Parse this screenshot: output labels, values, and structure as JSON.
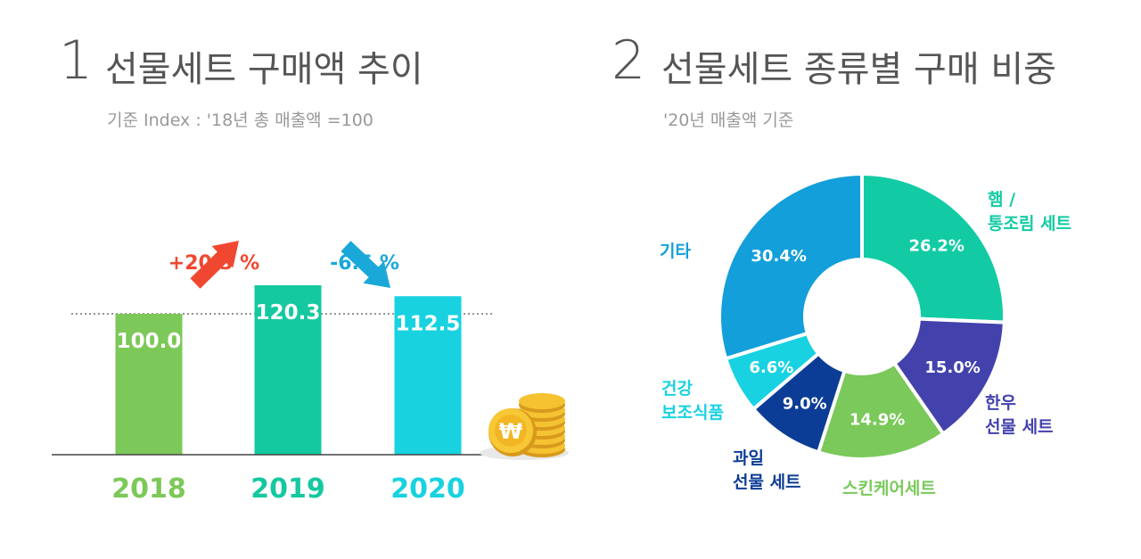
{
  "panel1": {
    "number": "1",
    "title": "선물세트 구매액 추이",
    "subtitle": "기준 Index : '18년 총 매출액 =100",
    "icon": "coins-icon"
  },
  "panel2": {
    "number": "2",
    "title": "선물세트 종류별 구매 비중",
    "subtitle": "'20년 매출액 기준"
  },
  "chart_data": [
    {
      "type": "bar",
      "categories": [
        "2018",
        "2019",
        "2020"
      ],
      "values": [
        100.0,
        120.3,
        112.5
      ],
      "value_labels": [
        "100.0",
        "120.3",
        "112.5"
      ],
      "colors": [
        "#7cc858",
        "#14c8a0",
        "#18d2e0"
      ],
      "baseline_reference": 100,
      "changes": [
        {
          "label": "+20.3 %",
          "color": "#f04830",
          "direction": "up"
        },
        {
          "label": "-6.5 %",
          "color": "#1aa8d8",
          "direction": "down"
        }
      ]
    },
    {
      "type": "pie",
      "slices": [
        {
          "label": "햄 / 통조림 세트",
          "lines": [
            "햄 /",
            "통조림 세트"
          ],
          "value": 26.2,
          "value_label": "26.2%",
          "color": "#12cba4"
        },
        {
          "label": "한우 선물 세트",
          "lines": [
            "한우",
            "선물 세트"
          ],
          "value": 15.0,
          "value_label": "15.0%",
          "color": "#4342ac"
        },
        {
          "label": "스킨케어세트",
          "lines": [
            "스킨케어세트"
          ],
          "value": 14.9,
          "value_label": "14.9%",
          "color": "#7ac95a"
        },
        {
          "label": "과일 선물 세트",
          "lines": [
            "과일",
            "선물 세트"
          ],
          "value": 9.0,
          "value_label": "9.0%",
          "color": "#0c3d96"
        },
        {
          "label": "건강 보조식품",
          "lines": [
            "건강",
            "보조식품"
          ],
          "value": 6.6,
          "value_label": "6.6%",
          "color": "#18d2e2"
        },
        {
          "label": "기타",
          "lines": [
            "기타"
          ],
          "value": 30.4,
          "value_label": "30.4%",
          "color": "#139fda"
        }
      ]
    }
  ]
}
